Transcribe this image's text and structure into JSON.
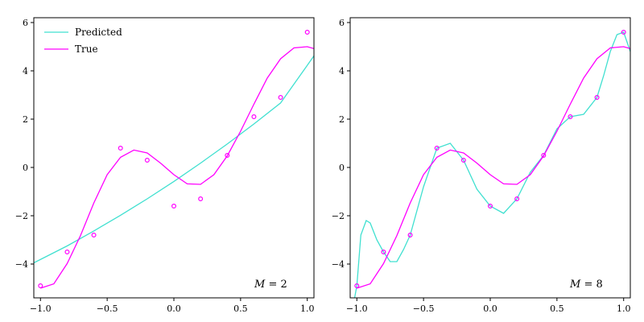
{
  "colors": {
    "predicted": "#40e0d0",
    "true": "#ff00ff",
    "points": "#ff00ff",
    "axes": "#000000"
  },
  "legend": {
    "placement": "top-left",
    "predicted_label": "Predicted",
    "true_label": "True"
  },
  "chart_data": [
    {
      "type": "line",
      "title": "",
      "xlabel": "",
      "ylabel": "",
      "xlim": [
        -1.05,
        1.05
      ],
      "ylim": [
        -5.4,
        6.2
      ],
      "x_ticks": [
        -1.0,
        -0.5,
        0.0,
        0.5,
        1.0
      ],
      "x_tick_labels": [
        "−1.0",
        "−0.5",
        "0.0",
        "0.5",
        "1.0"
      ],
      "y_ticks": [
        -4,
        -2,
        0,
        2,
        4,
        6
      ],
      "y_tick_labels": [
        "−4",
        "−2",
        "0",
        "2",
        "4",
        "6"
      ],
      "grid": false,
      "legend_shown": true,
      "annotation": {
        "label": "M",
        "value": "2"
      },
      "points": {
        "x": [
          -1.0,
          -0.8,
          -0.6,
          -0.4,
          -0.2,
          0.0,
          0.2,
          0.4,
          0.6,
          0.8,
          1.0
        ],
        "y": [
          -4.9,
          -3.5,
          -2.8,
          0.8,
          0.3,
          -1.6,
          -1.3,
          0.5,
          2.1,
          2.9,
          5.6
        ]
      },
      "series": [
        {
          "name": "Predicted",
          "color": "#40e0d0",
          "x": [
            -1.05,
            -0.8,
            -0.6,
            -0.4,
            -0.2,
            0.0,
            0.2,
            0.4,
            0.6,
            0.8,
            1.05
          ],
          "y": [
            -3.95,
            -3.25,
            -2.63,
            -1.98,
            -1.3,
            -0.58,
            0.18,
            0.97,
            1.8,
            2.67,
            4.62
          ]
        },
        {
          "name": "True",
          "color": "#ff00ff",
          "x": [
            -1.0,
            -0.9,
            -0.8,
            -0.7,
            -0.6,
            -0.5,
            -0.4,
            -0.3,
            -0.2,
            -0.1,
            0.0,
            0.1,
            0.2,
            0.3,
            0.4,
            0.5,
            0.6,
            0.7,
            0.8,
            0.9,
            1.0,
            1.05
          ],
          "y": [
            -5.0,
            -4.82,
            -3.98,
            -2.82,
            -1.47,
            -0.3,
            0.42,
            0.72,
            0.6,
            0.18,
            -0.3,
            -0.68,
            -0.7,
            -0.3,
            0.48,
            1.5,
            2.62,
            3.7,
            4.5,
            4.95,
            5.0,
            4.92
          ]
        }
      ]
    },
    {
      "type": "line",
      "title": "",
      "xlabel": "",
      "ylabel": "",
      "xlim": [
        -1.05,
        1.05
      ],
      "ylim": [
        -5.4,
        6.2
      ],
      "x_ticks": [
        -1.0,
        -0.5,
        0.0,
        0.5,
        1.0
      ],
      "x_tick_labels": [
        "−1.0",
        "−0.5",
        "0.0",
        "0.5",
        "1.0"
      ],
      "y_ticks": [
        -4,
        -2,
        0,
        2,
        4,
        6
      ],
      "y_tick_labels": [
        "−4",
        "−2",
        "0",
        "2",
        "4",
        "6"
      ],
      "grid": false,
      "legend_shown": false,
      "annotation": {
        "label": "M",
        "value": "8"
      },
      "points": {
        "x": [
          -1.0,
          -0.8,
          -0.6,
          -0.4,
          -0.2,
          0.0,
          0.2,
          0.4,
          0.6,
          0.8,
          1.0
        ],
        "y": [
          -4.9,
          -3.5,
          -2.8,
          0.8,
          0.3,
          -1.6,
          -1.3,
          0.5,
          2.1,
          2.9,
          5.6
        ]
      },
      "series": [
        {
          "name": "Predicted",
          "color": "#40e0d0",
          "x": [
            -1.02,
            -1.0,
            -0.97,
            -0.93,
            -0.9,
            -0.85,
            -0.8,
            -0.75,
            -0.7,
            -0.65,
            -0.6,
            -0.5,
            -0.4,
            -0.3,
            -0.2,
            -0.1,
            0.0,
            0.1,
            0.2,
            0.3,
            0.4,
            0.5,
            0.6,
            0.7,
            0.8,
            0.85,
            0.9,
            0.95,
            1.0,
            1.05
          ],
          "y": [
            -5.5,
            -4.9,
            -2.8,
            -2.2,
            -2.3,
            -3.0,
            -3.5,
            -3.9,
            -3.9,
            -3.4,
            -2.8,
            -0.8,
            0.8,
            1.0,
            0.3,
            -0.9,
            -1.6,
            -1.9,
            -1.3,
            -0.2,
            0.5,
            1.6,
            2.1,
            2.2,
            2.9,
            3.8,
            4.8,
            5.5,
            5.6,
            4.8
          ]
        },
        {
          "name": "True",
          "color": "#ff00ff",
          "x": [
            -1.0,
            -0.9,
            -0.8,
            -0.7,
            -0.6,
            -0.5,
            -0.4,
            -0.3,
            -0.2,
            -0.1,
            0.0,
            0.1,
            0.2,
            0.3,
            0.4,
            0.5,
            0.6,
            0.7,
            0.8,
            0.9,
            1.0,
            1.05
          ],
          "y": [
            -5.0,
            -4.82,
            -3.98,
            -2.82,
            -1.47,
            -0.3,
            0.42,
            0.72,
            0.6,
            0.18,
            -0.3,
            -0.68,
            -0.7,
            -0.3,
            0.48,
            1.5,
            2.62,
            3.7,
            4.5,
            4.95,
            5.0,
            4.92
          ]
        }
      ]
    }
  ]
}
